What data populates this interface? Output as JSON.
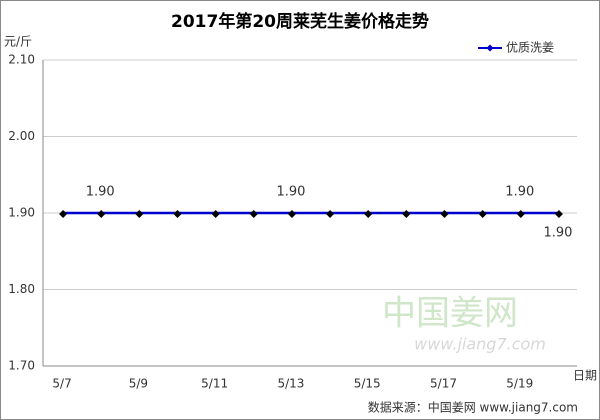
{
  "chart_data": {
    "type": "line",
    "title": "2017年第20周莱芜生姜价格走势",
    "y_label": "元/斤",
    "x_label": "日期",
    "categories": [
      "5/7",
      null,
      "5/9",
      null,
      "5/11",
      null,
      "5/13",
      null,
      "5/15",
      null,
      "5/17",
      null,
      "5/19",
      null
    ],
    "series": [
      {
        "name": "优质洗姜",
        "color": "#0000cc",
        "values": [
          1.9,
          1.9,
          1.9,
          1.9,
          1.9,
          1.9,
          1.9,
          1.9,
          1.9,
          1.9,
          1.9,
          1.9,
          1.9,
          1.9
        ],
        "value_labels": [
          null,
          "1.90",
          null,
          null,
          null,
          null,
          "1.90",
          null,
          null,
          null,
          null,
          null,
          "1.90",
          "1.90"
        ]
      }
    ],
    "ylim": [
      1.7,
      2.1
    ],
    "yticks": [
      {
        "value": 1.7,
        "label": "1.70"
      },
      {
        "value": 1.8,
        "label": "1.80"
      },
      {
        "value": 1.9,
        "label": "1.90"
      },
      {
        "value": 2.0,
        "label": "2.00"
      },
      {
        "value": 2.1,
        "label": "2.10"
      }
    ],
    "grid": true,
    "legend": "top-right",
    "watermark": {
      "name": "中国姜网",
      "url": "www.jiang7.com"
    },
    "source": "数据来源：中国姜网 www.jiang7.com"
  }
}
